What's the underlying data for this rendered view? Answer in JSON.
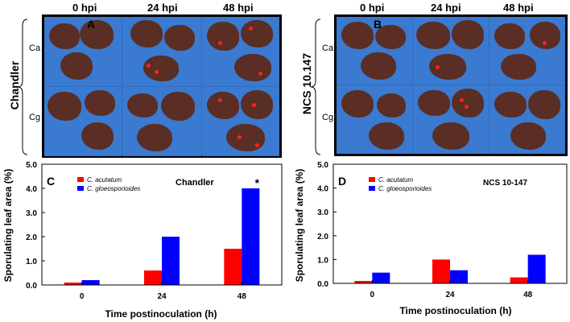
{
  "photo_panels": {
    "A": {
      "letter": "A",
      "cultivar": "Chandler",
      "time_headers": [
        "0 hpi",
        "24 hpi",
        "48 hpi"
      ],
      "row_labels": [
        "Ca",
        "Cg"
      ]
    },
    "B": {
      "letter": "B",
      "cultivar": "NCS 10.147",
      "time_headers": [
        "0 hpi",
        "24 hpi",
        "48 hpi"
      ],
      "row_labels": [
        "Ca",
        "Cg"
      ]
    }
  },
  "chart_data": [
    {
      "type": "bar",
      "panel": "C",
      "title": "Chandler",
      "categories": [
        "0",
        "24",
        "48"
      ],
      "series": [
        {
          "name": "C. acutatum",
          "color": "#ff0000",
          "values": [
            0.1,
            0.6,
            1.5
          ]
        },
        {
          "name": "C. gloeosporioides",
          "color": "#0000ff",
          "values": [
            0.2,
            2.0,
            4.0
          ]
        }
      ],
      "annotations": [
        {
          "category": "48",
          "series": "C. gloeosporioides",
          "text": "*"
        }
      ],
      "xlabel": "Time postinoculation (h)",
      "ylabel": "Sporulating leaf area (%)",
      "ylim": [
        0,
        5
      ],
      "yticks": [
        "0.0",
        "1.0",
        "2.0",
        "3.0",
        "4.0",
        "5.0"
      ]
    },
    {
      "type": "bar",
      "panel": "D",
      "title": "NCS 10-147",
      "categories": [
        "0",
        "24",
        "48"
      ],
      "series": [
        {
          "name": "C. acutatum",
          "color": "#ff0000",
          "values": [
            0.1,
            1.0,
            0.25
          ]
        },
        {
          "name": "C. gloeosporioides",
          "color": "#0000ff",
          "values": [
            0.45,
            0.55,
            1.2
          ]
        }
      ],
      "annotations": [],
      "xlabel": "Time postinoculation (h)",
      "ylabel": "Sporulating leaf area (%)",
      "ylim": [
        0,
        5
      ],
      "yticks": [
        "0.0",
        "1.0",
        "2.0",
        "3.0",
        "4.0",
        "5.0"
      ]
    }
  ]
}
